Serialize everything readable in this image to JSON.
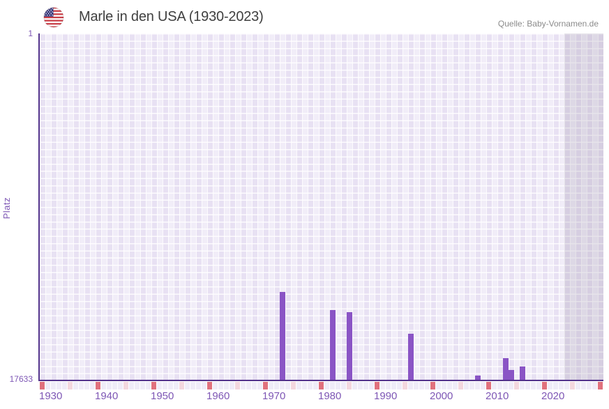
{
  "header": {
    "flag_icon": "us-flag-icon",
    "title": "Marle in den USA (1930-2023)",
    "source": "Quelle: Baby-Vornamen.de"
  },
  "chart_data": {
    "type": "bar",
    "title": "Marle in den USA (1930-2023)",
    "ylabel": "Platz",
    "xlabel": "",
    "y_min_label": "1",
    "y_max_label": "17633",
    "ylim": [
      1,
      17633
    ],
    "y_inverted": true,
    "grid": true,
    "legend_position": "none",
    "x_start_year": 1930,
    "x_axis_end_year": 2030,
    "data_range": [
      1930,
      2023
    ],
    "x_tick_labels": [
      "1930",
      "1940",
      "1950",
      "1960",
      "1970",
      "1980",
      "1990",
      "2000",
      "2010",
      "2020"
    ],
    "points": [
      {
        "year": 1973,
        "rank": 13150
      },
      {
        "year": 1982,
        "rank": 14100
      },
      {
        "year": 1985,
        "rank": 14200
      },
      {
        "year": 1996,
        "rank": 15280
      },
      {
        "year": 2008,
        "rank": 17410
      },
      {
        "year": 2013,
        "rank": 16520
      },
      {
        "year": 2014,
        "rank": 17150
      },
      {
        "year": 2016,
        "rank": 16970
      }
    ],
    "axis_markers": {
      "decade_interval": 10,
      "half_decade_interval": 5,
      "note": "colored cells under x-axis at every 10 / 5 years"
    },
    "no_data_region": [
      2024,
      2030
    ]
  },
  "colors": {
    "bar": "#8a54c5",
    "axis_line": "#53338c",
    "tick_label": "#7e57b5",
    "decade_marker": "#e0717d",
    "half_decade_marker": "#f3d7de",
    "marker_row_default": "#efecf8",
    "title_text": "#3f3f3f",
    "source_text": "#8b8b8b"
  }
}
